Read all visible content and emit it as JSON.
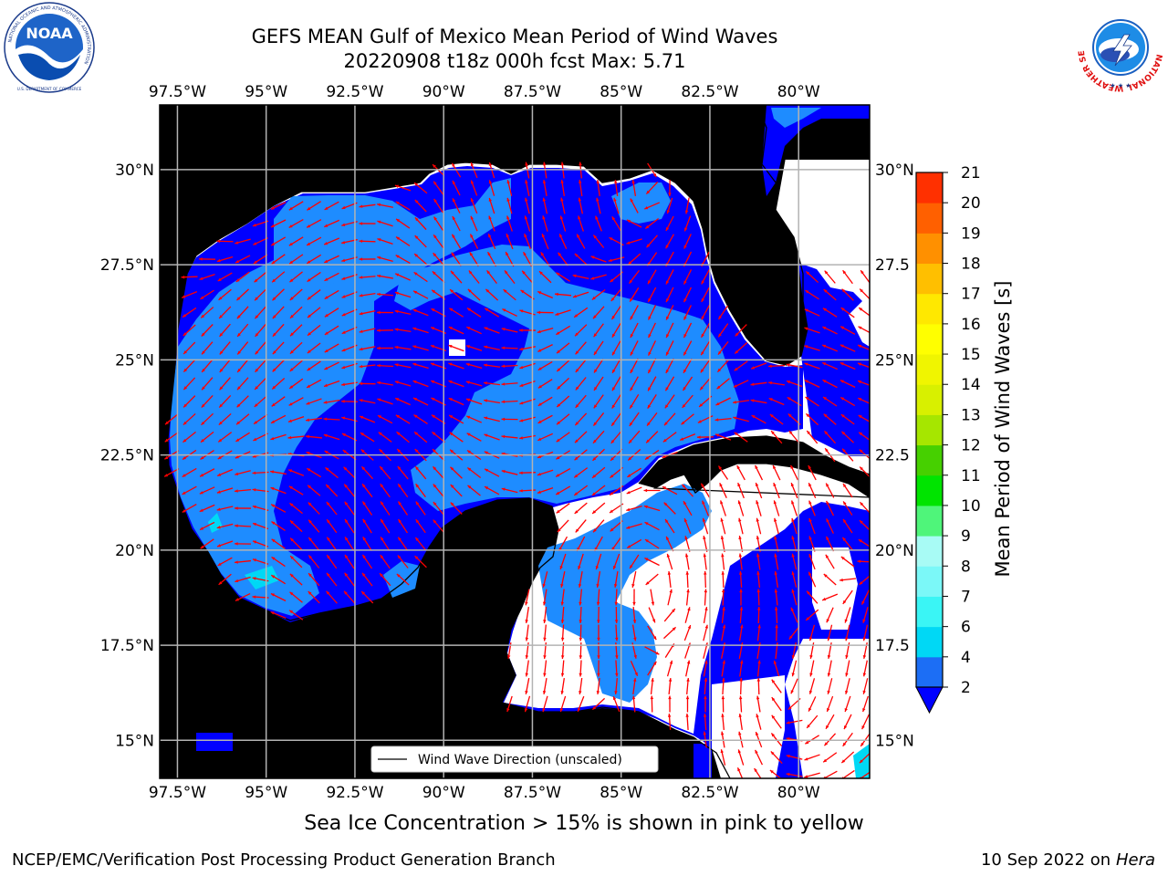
{
  "header": {
    "title_line1": "GEFS MEAN Gulf of Mexico Mean Period of Wind Waves",
    "title_line2": "20220908 t18z 000h fcst   Max: 5.71"
  },
  "logos": {
    "left": "noaa-logo",
    "right": "nws-logo",
    "left_ring_text": "NATIONAL OCEANIC AND ATMOSPHERIC ADMINISTRATION",
    "left_bottom_text": "U.S. DEPARTMENT OF COMMERCE",
    "left_center_text": "NOAA",
    "right_ring_text": "NATIONAL WEATHER SERVICE"
  },
  "map": {
    "lon_ticks_top": [
      "97.5°W",
      "95°W",
      "92.5°W",
      "90°W",
      "87.5°W",
      "85°W",
      "82.5°W",
      "80°W"
    ],
    "lon_ticks_bottom": [
      "97.5°W",
      "95°W",
      "92.5°W",
      "90°W",
      "87.5°W",
      "85°W",
      "82.5°W",
      "80°W"
    ],
    "lat_ticks_left": [
      "30°N",
      "27.5°N",
      "25°N",
      "22.5°N",
      "20°N",
      "17.5°N",
      "15°N"
    ],
    "lat_ticks_right": [
      "30°N",
      "27.5",
      "25°N",
      "22.5",
      "20°N",
      "17.5",
      "15°N"
    ],
    "lon_values": [
      -97.5,
      -95,
      -92.5,
      -90,
      -87.5,
      -85,
      -82.5,
      -80
    ],
    "lat_values": [
      30,
      27.5,
      25,
      22.5,
      20,
      17.5,
      15
    ],
    "extent": {
      "lon_min": -98,
      "lon_max": -78,
      "lat_min": 14,
      "lat_max": 31.7
    },
    "legend_label": "Wind Wave Direction (unscaled)",
    "colors": {
      "land": "#efefdc",
      "grid": "#b3b3b3",
      "arrow": "#ff0000",
      "period_2_4": "#0000ff",
      "period_4_6": "#1e8cff"
    }
  },
  "colorbar": {
    "label": "Mean Period of Wind Waves [s]",
    "ticks": [
      "2",
      "4",
      "6",
      "7",
      "8",
      "9",
      "10",
      "11",
      "12",
      "13",
      "14",
      "15",
      "16",
      "17",
      "18",
      "19",
      "20",
      "21"
    ],
    "colors": [
      "#1c6ef5",
      "#00d8f5",
      "#3af5f5",
      "#7bf8f8",
      "#a8fbf5",
      "#4ff57a",
      "#00e400",
      "#46d000",
      "#a6e600",
      "#d8f000",
      "#f0f500",
      "#ffff00",
      "#ffe800",
      "#ffbf00",
      "#ff9000",
      "#ff6000",
      "#ff3000",
      "#ff0000"
    ],
    "extend_color": "#0000ff"
  },
  "footer": {
    "ice_note": "Sea Ice Concentration > 15% is shown in pink to yellow",
    "left": "NCEP/EMC/Verification Post Processing Product Generation Branch",
    "right_date": "10 Sep 2022 on",
    "right_host": "Hera"
  }
}
